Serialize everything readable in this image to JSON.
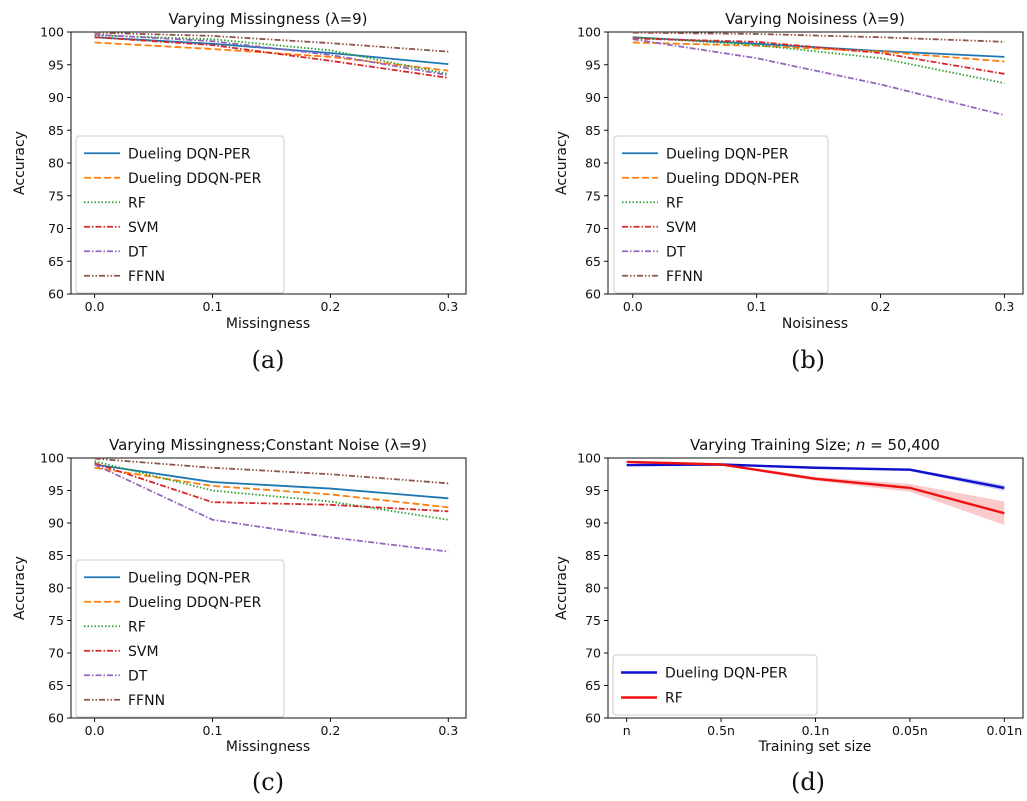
{
  "chart_data": [
    {
      "type": "line",
      "title": "Varying Missingness (λ=9)",
      "xlabel": "Missingness",
      "ylabel": "Accuracy",
      "caption": "(a)",
      "x": [
        0.0,
        0.1,
        0.2,
        0.3
      ],
      "x_ticks": [
        "0.0",
        "0.1",
        "0.2",
        "0.3"
      ],
      "xlim": [
        -0.02,
        0.315
      ],
      "ylim": [
        60,
        100
      ],
      "y_ticks": [
        "60",
        "65",
        "70",
        "75",
        "80",
        "85",
        "90",
        "95",
        "100"
      ],
      "grid": false,
      "legend_position": "lower-left",
      "series": [
        {
          "name": "Dueling DQN-PER",
          "color": "#1f77b4",
          "dash": "solid",
          "values": [
            99.2,
            98.2,
            96.8,
            95.1
          ]
        },
        {
          "name": "Dueling DDQN-PER",
          "color": "#ff7f0e",
          "dash": "dashed",
          "values": [
            98.4,
            97.4,
            96.2,
            94.1
          ]
        },
        {
          "name": "RF",
          "color": "#2ca02c",
          "dash": "dotted",
          "values": [
            99.5,
            98.9,
            97.2,
            93.6
          ]
        },
        {
          "name": "SVM",
          "color": "#d62728",
          "dash": "dashdot",
          "values": [
            99.2,
            98.0,
            95.6,
            93.0
          ]
        },
        {
          "name": "DT",
          "color": "#9467bd",
          "dash": "dashdot",
          "values": [
            99.6,
            98.6,
            96.5,
            93.4
          ]
        },
        {
          "name": "FFNN",
          "color": "#8c564b",
          "dash": "dashdotdot",
          "values": [
            99.9,
            99.4,
            98.3,
            97.0
          ]
        }
      ]
    },
    {
      "type": "line",
      "title": "Varying Noisiness (λ=9)",
      "xlabel": "Noisiness",
      "ylabel": "Accuracy",
      "caption": "(b)",
      "x": [
        0.0,
        0.1,
        0.2,
        0.3
      ],
      "x_ticks": [
        "0.0",
        "0.1",
        "0.2",
        "0.3"
      ],
      "xlim": [
        -0.02,
        0.315
      ],
      "ylim": [
        60,
        100
      ],
      "y_ticks": [
        "60",
        "65",
        "70",
        "75",
        "80",
        "85",
        "90",
        "95",
        "100"
      ],
      "grid": false,
      "legend_position": "lower-left",
      "series": [
        {
          "name": "Dueling DQN-PER",
          "color": "#1f77b4",
          "dash": "solid",
          "values": [
            99.2,
            98.2,
            97.1,
            96.2
          ]
        },
        {
          "name": "Dueling DDQN-PER",
          "color": "#ff7f0e",
          "dash": "dashed",
          "values": [
            98.4,
            97.9,
            97.0,
            95.5
          ]
        },
        {
          "name": "RF",
          "color": "#2ca02c",
          "dash": "dotted",
          "values": [
            99.2,
            98.0,
            96.0,
            92.2
          ]
        },
        {
          "name": "SVM",
          "color": "#d62728",
          "dash": "dashdot",
          "values": [
            99.0,
            98.5,
            96.8,
            93.6
          ]
        },
        {
          "name": "DT",
          "color": "#9467bd",
          "dash": "dashdot",
          "values": [
            98.9,
            96.0,
            92.0,
            87.3
          ]
        },
        {
          "name": "FFNN",
          "color": "#8c564b",
          "dash": "dashdotdot",
          "values": [
            99.9,
            99.7,
            99.2,
            98.5
          ]
        }
      ]
    },
    {
      "type": "line",
      "title": "Varying Missingness;Constant Noise (λ=9)",
      "xlabel": "Missingness",
      "ylabel": "Accuracy",
      "caption": "(c)",
      "x": [
        0.0,
        0.1,
        0.2,
        0.3
      ],
      "x_ticks": [
        "0.0",
        "0.1",
        "0.2",
        "0.3"
      ],
      "xlim": [
        -0.02,
        0.315
      ],
      "ylim": [
        60,
        100
      ],
      "y_ticks": [
        "60",
        "65",
        "70",
        "75",
        "80",
        "85",
        "90",
        "95",
        "100"
      ],
      "grid": false,
      "legend_position": "lower-left",
      "series": [
        {
          "name": "Dueling DQN-PER",
          "color": "#1f77b4",
          "dash": "solid",
          "values": [
            99.0,
            96.3,
            95.3,
            93.8
          ]
        },
        {
          "name": "Dueling DDQN-PER",
          "color": "#ff7f0e",
          "dash": "dashed",
          "values": [
            98.5,
            95.7,
            94.4,
            92.4
          ]
        },
        {
          "name": "RF",
          "color": "#2ca02c",
          "dash": "dotted",
          "values": [
            99.5,
            95.0,
            93.3,
            90.5
          ]
        },
        {
          "name": "SVM",
          "color": "#d62728",
          "dash": "dashdot",
          "values": [
            99.2,
            93.2,
            92.8,
            91.8
          ]
        },
        {
          "name": "DT",
          "color": "#9467bd",
          "dash": "dashdot",
          "values": [
            99.0,
            90.5,
            87.8,
            85.6
          ]
        },
        {
          "name": "FFNN",
          "color": "#8c564b",
          "dash": "dashdotdot",
          "values": [
            99.9,
            98.5,
            97.5,
            96.1
          ]
        }
      ]
    },
    {
      "type": "line",
      "title_parts": {
        "prefix": "Varying Training Size; ",
        "var": "n",
        "suffix": " = 50,400"
      },
      "xlabel": "Training set size",
      "ylabel": "Accuracy",
      "caption": "(d)",
      "categories": [
        "n",
        "0.5n",
        "0.1n",
        "0.05n",
        "0.01n"
      ],
      "ylim": [
        60,
        100
      ],
      "y_ticks": [
        "60",
        "65",
        "70",
        "75",
        "80",
        "85",
        "90",
        "95",
        "100"
      ],
      "grid": false,
      "legend_position": "lower-left",
      "series": [
        {
          "name": "Dueling DQN-PER",
          "color": "#1010cc",
          "dash": "solid",
          "values": [
            98.9,
            99.0,
            98.5,
            98.2,
            95.4
          ],
          "band": [
            0.1,
            0.1,
            0.15,
            0.2,
            0.45
          ]
        },
        {
          "name": "RF",
          "color": "#ee1111",
          "dash": "solid",
          "values": [
            99.4,
            99.0,
            96.8,
            95.4,
            91.5
          ],
          "band": [
            0.1,
            0.15,
            0.3,
            0.6,
            1.8
          ]
        }
      ]
    }
  ]
}
